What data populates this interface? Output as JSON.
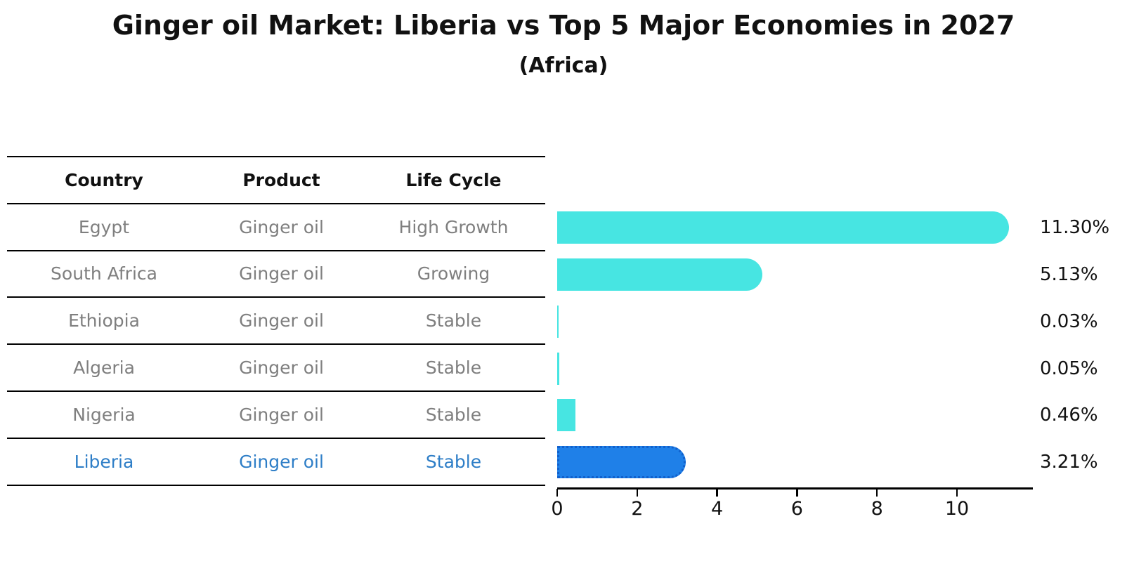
{
  "figure": {
    "title": "Ginger oil Market: Liberia vs Top 5 Major Economies in 2027",
    "subtitle": "(Africa)"
  },
  "table": {
    "headers": [
      "Country",
      "Product",
      "Life Cycle"
    ],
    "rows": [
      {
        "country": "Egypt",
        "product": "Ginger oil",
        "life_cycle": "High Growth",
        "highlight": false
      },
      {
        "country": "South Africa",
        "product": "Ginger oil",
        "life_cycle": "Growing",
        "highlight": false
      },
      {
        "country": "Ethiopia",
        "product": "Ginger oil",
        "life_cycle": "Stable",
        "highlight": false
      },
      {
        "country": "Algeria",
        "product": "Ginger oil",
        "life_cycle": "Stable",
        "highlight": false
      },
      {
        "country": "Nigeria",
        "product": "Ginger oil",
        "life_cycle": "Stable",
        "highlight": false
      },
      {
        "country": "Liberia",
        "product": "Ginger oil",
        "life_cycle": "Stable",
        "highlight": true
      }
    ]
  },
  "chart_data": {
    "type": "bar",
    "orientation": "horizontal",
    "title": "Ginger oil Market: Liberia vs Top 5 Major Economies in 2027",
    "subtitle": "(Africa)",
    "categories": [
      "Egypt",
      "South Africa",
      "Ethiopia",
      "Algeria",
      "Nigeria",
      "Liberia"
    ],
    "values": [
      11.3,
      5.13,
      0.03,
      0.05,
      0.46,
      3.21
    ],
    "value_labels": [
      "11.30%",
      "5.13%",
      "0.03%",
      "0.05%",
      "0.46%",
      "3.21%"
    ],
    "xlabel": "",
    "ylabel": "",
    "xticks": [
      0,
      2,
      4,
      6,
      8,
      10
    ],
    "xlim": [
      0,
      11.9
    ],
    "grid": false,
    "legend": false,
    "highlight_category": "Liberia",
    "colors": {
      "bar": "#47e5e2",
      "highlight_bar": "#1f80e8",
      "highlight_border": "#1160cc",
      "axis": "#000000",
      "table_text": "#7f7f7f",
      "header_text": "#111111",
      "highlight_text": "#2e7ec7",
      "value_text": "#111111"
    }
  }
}
